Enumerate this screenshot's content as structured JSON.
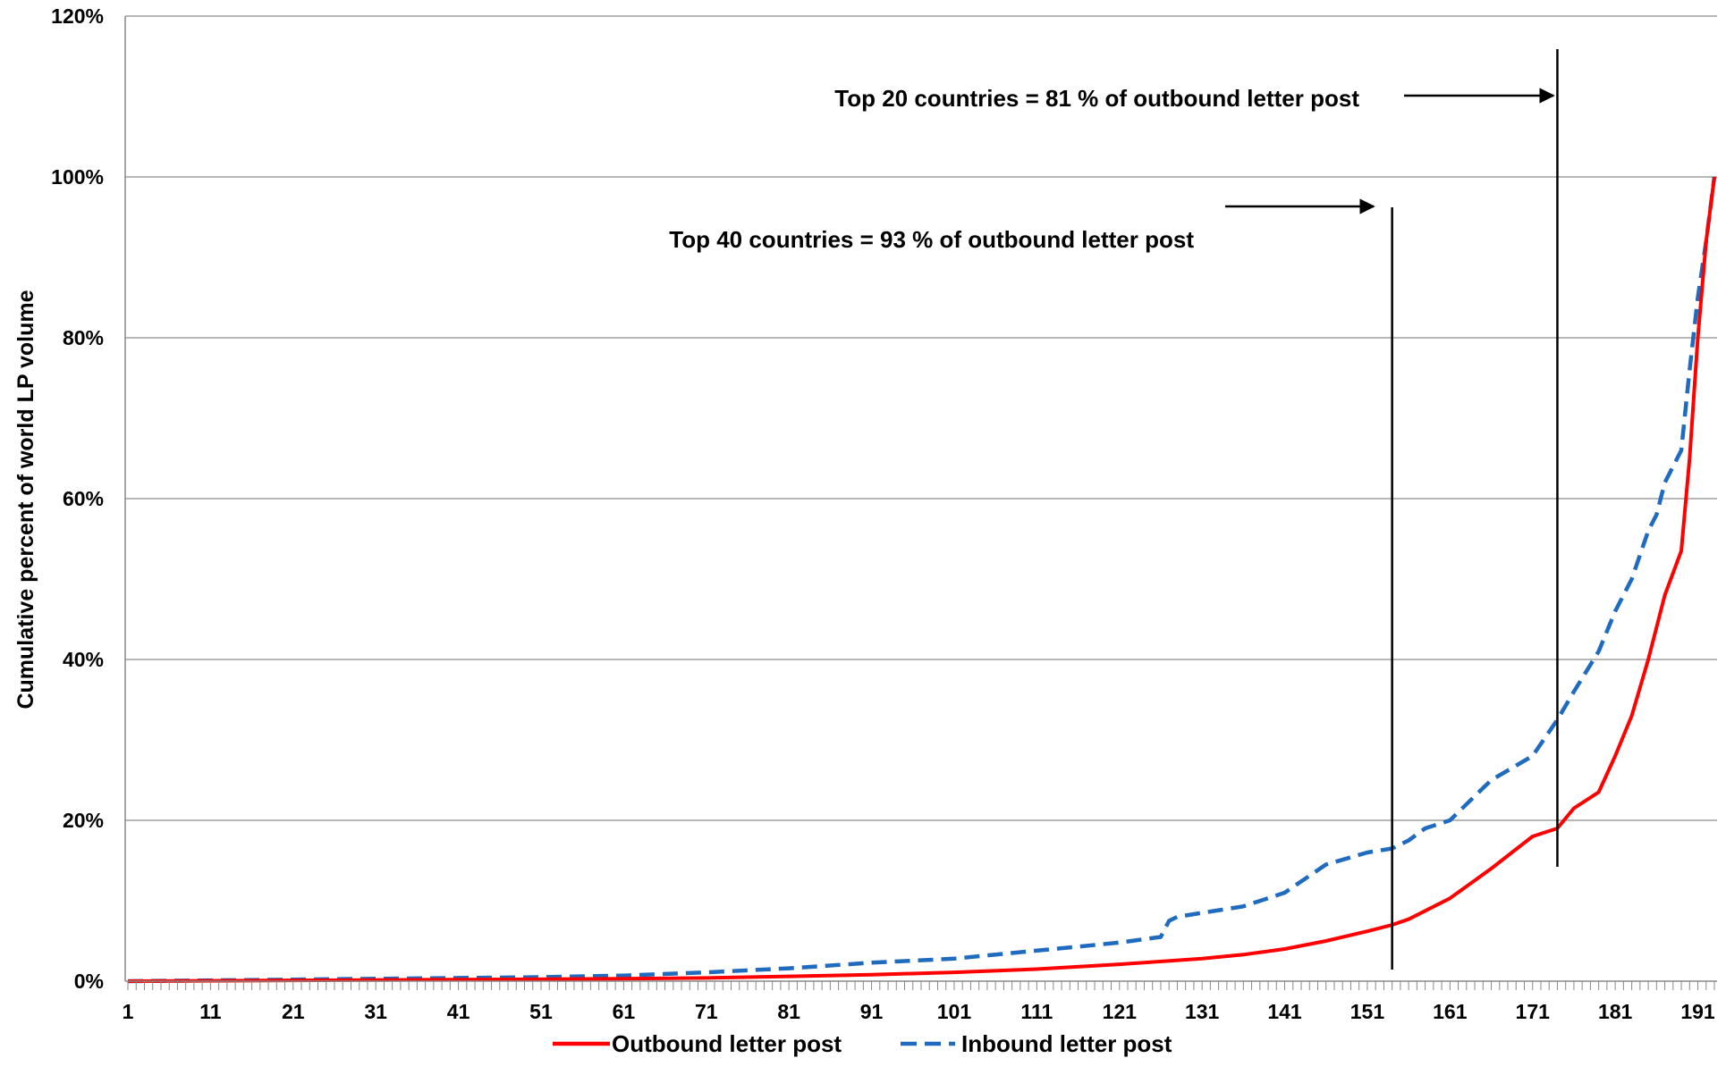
{
  "chart_data": {
    "type": "line",
    "title": "",
    "xlabel": "",
    "ylabel": "Cumulative percent of world LP volume",
    "xlim": [
      1,
      193
    ],
    "ylim": [
      0,
      120
    ],
    "y_ticks": [
      "0%",
      "20%",
      "40%",
      "60%",
      "80%",
      "100%",
      "120%"
    ],
    "x_ticks": [
      "1",
      "11",
      "21",
      "31",
      "41",
      "51",
      "61",
      "71",
      "81",
      "91",
      "101",
      "111",
      "121",
      "131",
      "141",
      "151",
      "161",
      "171",
      "181",
      "191"
    ],
    "grid": "horizontal",
    "legend_position": "bottom",
    "annotations": [
      {
        "text": "Top 20 countries = 81 % of outbound letter post",
        "x": 174
      },
      {
        "text": "Top 40 countries = 93 % of outbound letter post",
        "x": 154
      }
    ],
    "series": [
      {
        "name": "Outbound letter post",
        "color": "#ff0000",
        "style": "solid",
        "x": [
          1,
          21,
          41,
          61,
          71,
          81,
          91,
          101,
          111,
          121,
          131,
          136,
          141,
          146,
          151,
          154,
          156,
          161,
          166,
          171,
          174,
          176,
          179,
          181,
          183,
          185,
          187,
          189,
          190,
          191,
          192,
          193
        ],
        "y": [
          0,
          0.1,
          0.2,
          0.3,
          0.4,
          0.6,
          0.8,
          1.1,
          1.5,
          2.1,
          2.8,
          3.3,
          4.0,
          5.0,
          6.2,
          7.0,
          7.7,
          10.3,
          14.0,
          18.0,
          19.0,
          21.5,
          23.5,
          28.0,
          33.0,
          40.0,
          48.0,
          53.5,
          65.0,
          80.0,
          92.0,
          100.0
        ]
      },
      {
        "name": "Inbound letter post",
        "color": "#1f6bbf",
        "style": "dashed",
        "x": [
          1,
          11,
          21,
          31,
          41,
          51,
          61,
          71,
          81,
          91,
          101,
          111,
          121,
          126,
          127,
          128,
          131,
          136,
          141,
          146,
          151,
          154,
          156,
          158,
          161,
          166,
          171,
          174,
          176,
          179,
          181,
          183,
          185,
          186,
          187,
          188,
          189,
          190,
          191,
          192,
          193
        ],
        "y": [
          0,
          0.1,
          0.2,
          0.3,
          0.4,
          0.5,
          0.7,
          1.1,
          1.6,
          2.3,
          2.8,
          3.8,
          4.8,
          5.5,
          7.5,
          8.0,
          8.5,
          9.3,
          11.0,
          14.5,
          16.0,
          16.5,
          17.5,
          19.0,
          20.0,
          25.0,
          28.0,
          32.5,
          36.0,
          41.0,
          46.0,
          50.0,
          56.0,
          58.0,
          62.0,
          64.0,
          66.0,
          76.0,
          85.0,
          92.0,
          100.0
        ]
      }
    ]
  }
}
